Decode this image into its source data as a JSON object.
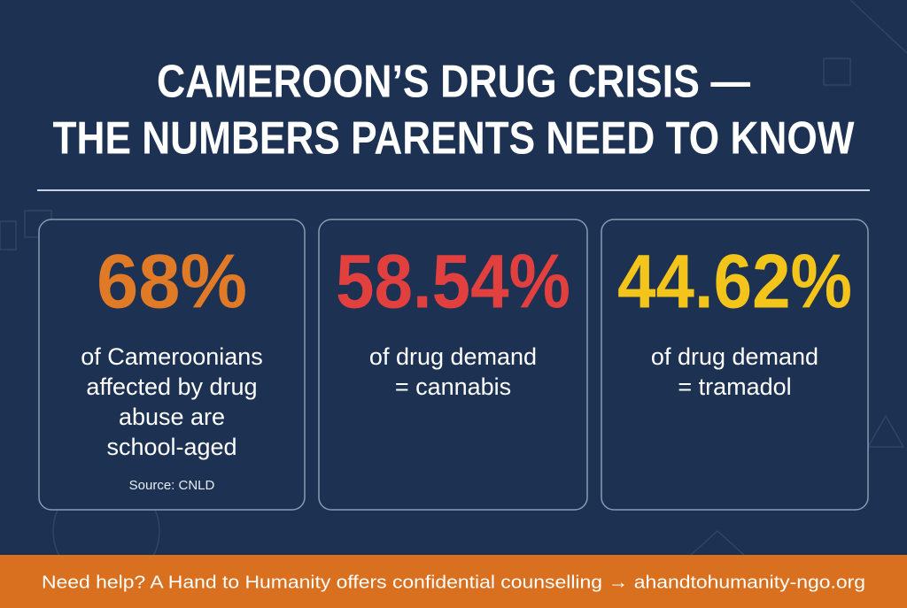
{
  "header": {
    "title_lines": [
      "CAMEROON’S DRUG CRISIS —",
      "THE NUMBERS PARENTS NEED TO KNOW"
    ]
  },
  "stats": [
    {
      "figure": "68%",
      "lines": [
        "of Cameroonians",
        "affected by drug",
        "abuse are",
        "school-aged"
      ],
      "source": "Source: CNLD"
    },
    {
      "figure": "58.54%",
      "lines": [
        "of drug demand",
        "= cannabis"
      ]
    },
    {
      "figure": "44.62%",
      "lines": [
        "of drug demand",
        "= tramadol"
      ]
    }
  ],
  "footer": {
    "text": "Need help? A Hand to Humanity offers confidential counselling → ahandtohumanity-ngo.org"
  }
}
